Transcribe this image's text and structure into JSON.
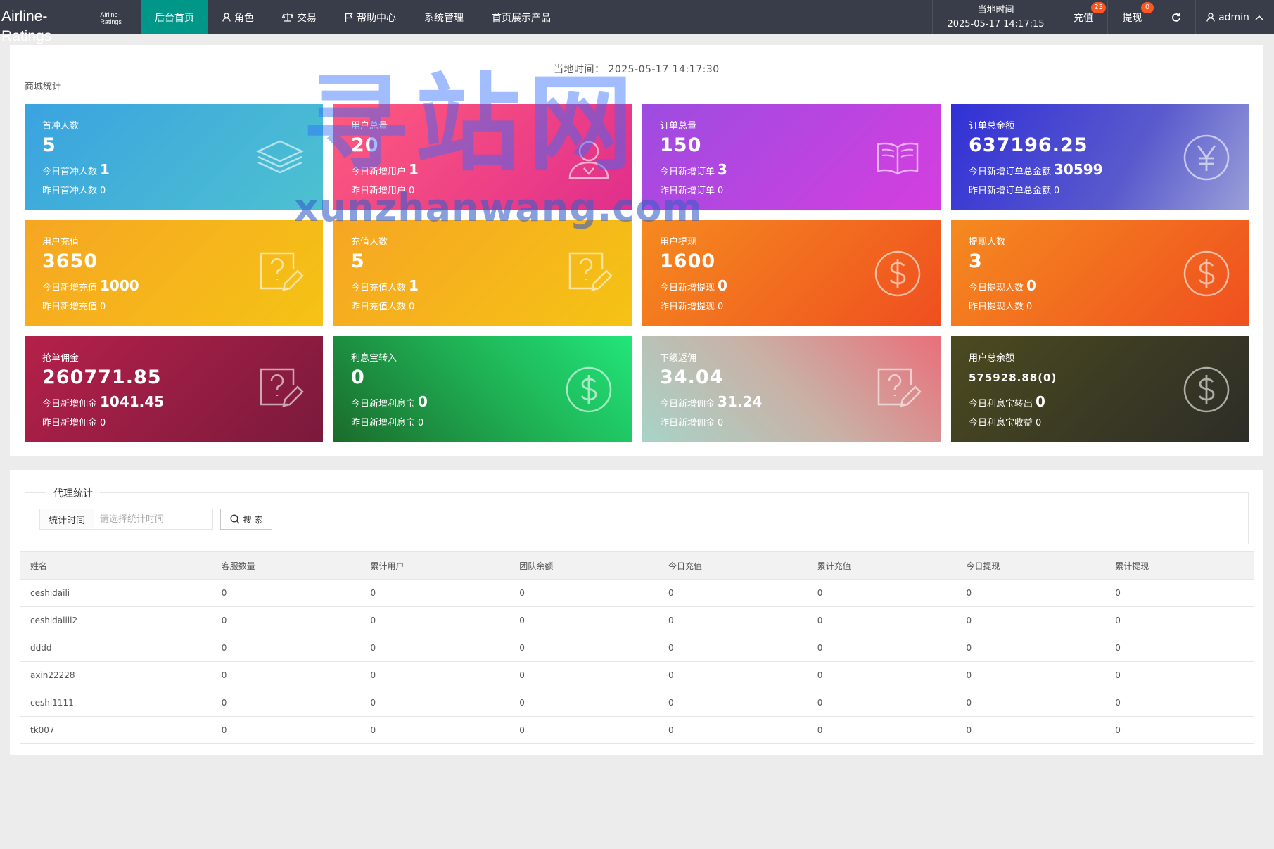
{
  "brand": {
    "title": "Airline-Ratings",
    "subtitle": "Airline-Ratings"
  },
  "nav": [
    {
      "label": "后台首页",
      "icon": "",
      "active": true
    },
    {
      "label": "角色",
      "icon": "user-icon"
    },
    {
      "label": "交易",
      "icon": "scale-icon"
    },
    {
      "label": "帮助中心",
      "icon": "flag-icon"
    },
    {
      "label": "系统管理",
      "icon": ""
    },
    {
      "label": "首页展示产品",
      "icon": ""
    }
  ],
  "topright": {
    "time_label": "当地时间",
    "time_value": "2025-05-17 14:17:15",
    "recharge_label": "充值",
    "recharge_badge": "23",
    "withdraw_label": "提现",
    "withdraw_badge": "0",
    "refresh_icon": "refresh-icon",
    "admin_label": "admin"
  },
  "mall": {
    "local_time": "当地时间： 2025-05-17 14:17:30",
    "section_label": "商城统计",
    "cards": [
      {
        "title": "首冲人数",
        "value": "5",
        "today_label": "今日首冲人数",
        "today_value": "1",
        "yday_label": "昨日首冲人数",
        "yday_value": "0",
        "icon": "layers-icon"
      },
      {
        "title": "用户总量",
        "value": "20",
        "today_label": "今日新增用户",
        "today_value": "1",
        "yday_label": "昨日新增用户",
        "yday_value": "0",
        "icon": "users-icon"
      },
      {
        "title": "订单总量",
        "value": "150",
        "today_label": "今日新增订单",
        "today_value": "3",
        "yday_label": "昨日新增订单",
        "yday_value": "0",
        "icon": "book-icon"
      },
      {
        "title": "订单总金额",
        "value": "637196.25",
        "today_label": "今日新增订单总金额",
        "today_value": "30599",
        "yday_label": "昨日新增订单总金额",
        "yday_value": "0",
        "icon": "yen-icon"
      },
      {
        "title": "用户充值",
        "value": "3650",
        "today_label": "今日新增充值",
        "today_value": "1000",
        "yday_label": "昨日新增充值",
        "yday_value": "0",
        "icon": "question-edit-icon"
      },
      {
        "title": "充值人数",
        "value": "5",
        "today_label": "今日充值人数",
        "today_value": "1",
        "yday_label": "昨日充值人数",
        "yday_value": "0",
        "icon": "question-edit-icon"
      },
      {
        "title": "用户提现",
        "value": "1600",
        "today_label": "今日新增提现",
        "today_value": "0",
        "yday_label": "昨日新增提现",
        "yday_value": "0",
        "icon": "dollar-icon"
      },
      {
        "title": "提现人数",
        "value": "3",
        "today_label": "今日提现人数",
        "today_value": "0",
        "yday_label": "昨日提现人数",
        "yday_value": "0",
        "icon": "dollar-icon"
      },
      {
        "title": "抢单佣金",
        "value": "260771.85",
        "today_label": "今日新增佣金",
        "today_value": "1041.45",
        "yday_label": "昨日新增佣金",
        "yday_value": "0",
        "icon": "question-edit-icon"
      },
      {
        "title": "利息宝转入",
        "value": "0",
        "today_label": "今日新增利息宝",
        "today_value": "0",
        "yday_label": "昨日新增利息宝",
        "yday_value": "0",
        "icon": "dollar-icon"
      },
      {
        "title": "下级返佣",
        "value": "34.04",
        "today_label": "今日新增佣金",
        "today_value": "31.24",
        "yday_label": "昨日新增佣金",
        "yday_value": "0",
        "icon": "question-edit-icon"
      },
      {
        "title": "用户总余额",
        "value": "575928.88(0)",
        "today_label": "今日利息宝转出",
        "today_value": "0",
        "yday_label": "今日利息宝收益",
        "yday_value": "0",
        "icon": "dollar-icon"
      }
    ],
    "colors": {
      "teal_header": "#009688",
      "topbar": "#393d49"
    }
  },
  "watermark": {
    "main": "寻站网",
    "sub": "xunzhanwang.com"
  },
  "agent": {
    "legend": "代理统计",
    "filter_label": "统计时间",
    "filter_placeholder": "请选择统计时间",
    "search_label": "搜 索",
    "columns": [
      "姓名",
      "客服数量",
      "累计用户",
      "团队余额",
      "今日充值",
      "累计充值",
      "今日提现",
      "累计提现"
    ],
    "rows": [
      [
        "ceshidaili",
        "0",
        "0",
        "0",
        "0",
        "0",
        "0",
        "0"
      ],
      [
        "ceshidalili2",
        "0",
        "0",
        "0",
        "0",
        "0",
        "0",
        "0"
      ],
      [
        "dddd",
        "0",
        "0",
        "0",
        "0",
        "0",
        "0",
        "0"
      ],
      [
        "axin22228",
        "0",
        "0",
        "0",
        "0",
        "0",
        "0",
        "0"
      ],
      [
        "ceshi1111",
        "0",
        "0",
        "0",
        "0",
        "0",
        "0",
        "0"
      ],
      [
        "tk007",
        "0",
        "0",
        "0",
        "0",
        "0",
        "0",
        "0"
      ]
    ]
  }
}
